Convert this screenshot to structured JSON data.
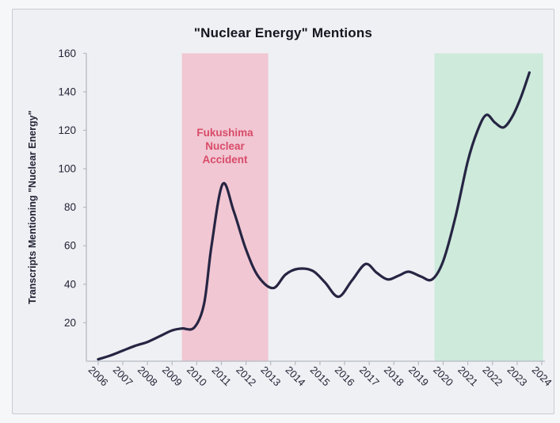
{
  "chart_data": {
    "type": "line",
    "title": "\"Nuclear Energy\" Mentions",
    "xlabel": "",
    "ylabel": "Transcripts Mentioning \"Nuclear Energy\"",
    "x_ticks": [
      2006,
      2007,
      2008,
      2009,
      2010,
      2011,
      2012,
      2013,
      2014,
      2015,
      2016,
      2017,
      2018,
      2019,
      2020,
      2021,
      2022,
      2023,
      2024
    ],
    "y_ticks": [
      20,
      40,
      60,
      80,
      100,
      120,
      140,
      160
    ],
    "xlim": [
      2005.52,
      2024.13
    ],
    "ylim": [
      0,
      160
    ],
    "grid": false,
    "legend": "none",
    "series": [
      {
        "name": "Transcripts mentioning \"Nuclear Energy\"",
        "color": "#262543",
        "smoothing": "spline",
        "points": [
          [
            2006.0,
            1
          ],
          [
            2006.5,
            3
          ],
          [
            2007.0,
            5.5
          ],
          [
            2007.5,
            8
          ],
          [
            2008.0,
            10
          ],
          [
            2008.5,
            13
          ],
          [
            2009.0,
            16
          ],
          [
            2009.4,
            17
          ],
          [
            2009.9,
            17.5
          ],
          [
            2010.3,
            30
          ],
          [
            2010.6,
            60
          ],
          [
            2011.05,
            92
          ],
          [
            2011.5,
            78
          ],
          [
            2012.0,
            58
          ],
          [
            2012.5,
            44
          ],
          [
            2013.1,
            38
          ],
          [
            2013.6,
            45
          ],
          [
            2014.1,
            48
          ],
          [
            2014.7,
            47
          ],
          [
            2015.2,
            41
          ],
          [
            2015.75,
            33.5
          ],
          [
            2016.3,
            42
          ],
          [
            2016.85,
            50.5
          ],
          [
            2017.3,
            46
          ],
          [
            2017.75,
            42.5
          ],
          [
            2018.2,
            44.5
          ],
          [
            2018.6,
            46.5
          ],
          [
            2019.1,
            44
          ],
          [
            2019.55,
            42.5
          ],
          [
            2020.0,
            52
          ],
          [
            2020.5,
            75
          ],
          [
            2021.0,
            104
          ],
          [
            2021.4,
            120
          ],
          [
            2021.75,
            128
          ],
          [
            2022.1,
            124
          ],
          [
            2022.45,
            121.5
          ],
          [
            2022.8,
            127
          ],
          [
            2023.15,
            137
          ],
          [
            2023.5,
            150
          ]
        ]
      }
    ],
    "annotations": [
      {
        "id": "fukushima-band",
        "kind": "vertical-band",
        "x_range": [
          2009.4,
          2012.9
        ],
        "fill": "#f1c7d3",
        "label_lines": [
          "Fukushima",
          "Nuclear",
          "Accident"
        ],
        "label_color": "#d84b68"
      },
      {
        "id": "post-2020-band",
        "kind": "vertical-band",
        "x_range": [
          2019.65,
          2024.05
        ],
        "fill": "#cdeadb",
        "label_lines": [],
        "label_color": ""
      }
    ]
  },
  "colors": {
    "page_background": "#f6f7f9",
    "card_background": "#eef0f3",
    "card_border": "#c8cbd2",
    "axis": "#b6bac3",
    "tick_text": "#232336",
    "title_text": "#15151f",
    "line": "#262543",
    "fukushima_band": "#f1c7d3",
    "fukushima_text": "#d84b68",
    "green_band": "#cdeadb"
  }
}
